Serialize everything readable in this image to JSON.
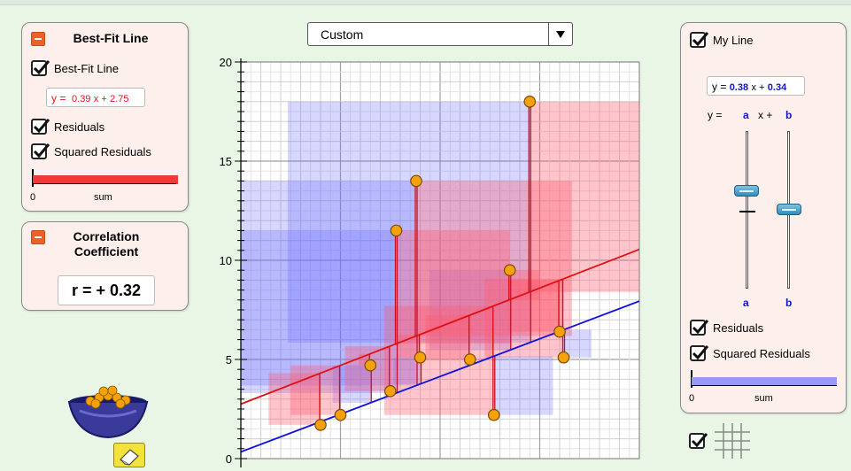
{
  "best_fit_panel": {
    "title": "Best-Fit Line",
    "bestfit_label": "Best-Fit Line",
    "equation": {
      "y_eq": "y =",
      "slope": "0.39",
      "x_plus": "x +",
      "intercept": "2.75"
    },
    "residuals_label": "Residuals",
    "squared_residuals_label": "Squared Residuals",
    "sum_zero": "0",
    "sum_label": "sum",
    "checked": {
      "bestfit": true,
      "residuals": true,
      "squared": true
    },
    "sum_bar_color": "#f03a3a"
  },
  "correlation_panel": {
    "title_line1": "Correlation",
    "title_line2": "Coefficient",
    "r_text": "r = + 0.32"
  },
  "dropdown": {
    "selected": "Custom"
  },
  "my_line_panel": {
    "title": "My Line",
    "checked": true,
    "equation": {
      "y_eq": "y =",
      "slope": "0.38",
      "x_plus": "x +",
      "intercept": "0.34"
    },
    "template": {
      "y_eq": "y =",
      "a": "a",
      "x_plus": "x +",
      "b": "b"
    },
    "slider_a_label": "a",
    "slider_b_label": "b",
    "residuals_label": "Residuals",
    "squared_residuals_label": "Squared Residuals",
    "sum_zero": "0",
    "sum_label": "sum",
    "sum_bar_color": "#9898f5"
  },
  "grid_toggle": {
    "checked": true,
    "icon": "grid-icon"
  },
  "eraser": {
    "icon": "eraser-icon"
  },
  "bucket": {
    "icon": "point-bucket-icon"
  },
  "chart_data": {
    "type": "scatter",
    "xlim": [
      0,
      20
    ],
    "ylim": [
      0,
      20
    ],
    "y_ticks": [
      "20",
      "15",
      "10",
      "5",
      "0"
    ],
    "points": [
      {
        "x": 4.0,
        "y": 1.7
      },
      {
        "x": 5.0,
        "y": 2.2
      },
      {
        "x": 6.5,
        "y": 4.7
      },
      {
        "x": 7.5,
        "y": 3.4
      },
      {
        "x": 7.8,
        "y": 11.5
      },
      {
        "x": 8.8,
        "y": 14.0
      },
      {
        "x": 9.0,
        "y": 5.1
      },
      {
        "x": 11.5,
        "y": 5.0
      },
      {
        "x": 12.7,
        "y": 2.2
      },
      {
        "x": 13.5,
        "y": 9.5
      },
      {
        "x": 14.5,
        "y": 18.0
      },
      {
        "x": 16.0,
        "y": 6.4
      },
      {
        "x": 16.2,
        "y": 5.1
      }
    ],
    "best_fit": {
      "slope": 0.39,
      "intercept": 2.75,
      "color": "#e01010"
    },
    "my_line": {
      "slope": 0.38,
      "intercept": 0.34,
      "color": "#1010e0"
    },
    "grid": true,
    "point_color": "#f5a10a"
  }
}
